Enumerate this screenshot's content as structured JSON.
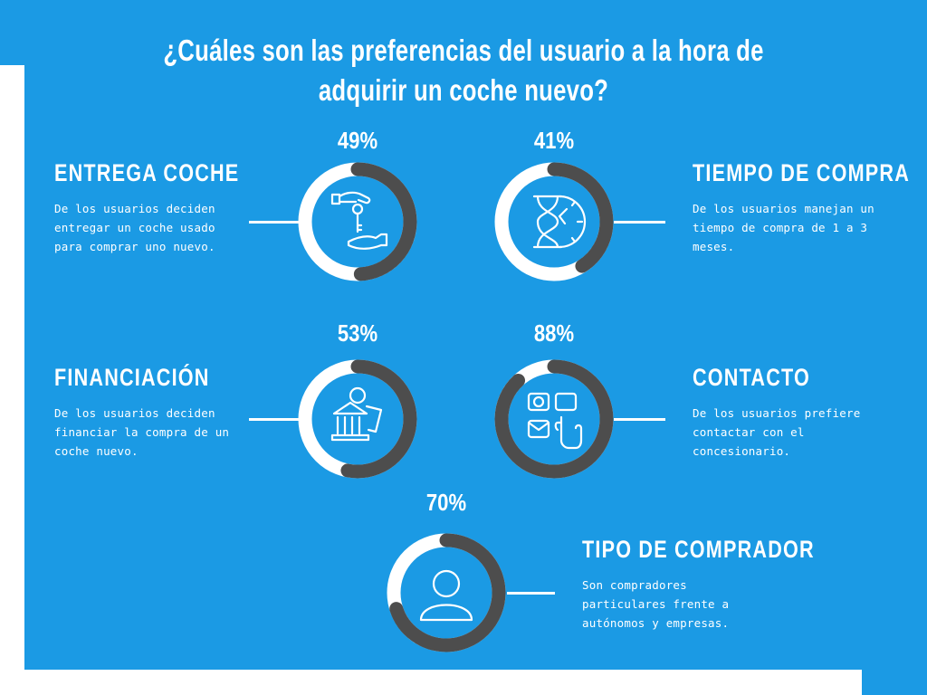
{
  "title": "¿Cuáles son las preferencias del usuario a la hora de adquirir un coche nuevo?",
  "colors": {
    "background": "#1b9ae4",
    "ring_track": "#ffffff",
    "ring_fill": "#4d4d4d"
  },
  "items": [
    {
      "percent_label": "49%",
      "heading": "ENTREGA COCHE",
      "text": "De los usuarios deciden entregar un coche usado para comprar uno nuevo.",
      "icon": "hand-key-icon"
    },
    {
      "percent_label": "41%",
      "heading": "TIEMPO DE COMPRA",
      "text": "De los usuarios manejan un tiempo de compra de 1 a 3 meses.",
      "icon": "hourglass-clock-icon"
    },
    {
      "percent_label": "53%",
      "heading": "FINANCIACIÓN",
      "text": "De los usuarios deciden financiar la compra de un coche nuevo.",
      "icon": "bank-money-icon"
    },
    {
      "percent_label": "88%",
      "heading": "CONTACTO",
      "text": "De los usuarios prefiere contactar con el concesionario.",
      "icon": "contact-touch-icon"
    },
    {
      "percent_label": "70%",
      "heading": "TIPO DE COMPRADOR",
      "text": "Son compradores particulares frente a autónomos y empresas.",
      "icon": "user-icon"
    }
  ],
  "chart_data": {
    "type": "pie",
    "categories": [
      "ENTREGA COCHE",
      "TIEMPO DE COMPRA",
      "FINANCIACIÓN",
      "CONTACTO",
      "TIPO DE COMPRADOR"
    ],
    "values": [
      49,
      41,
      53,
      88,
      70
    ],
    "unit": "%"
  }
}
